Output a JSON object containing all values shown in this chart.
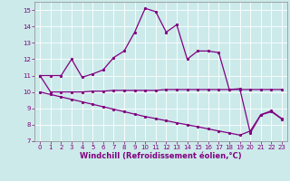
{
  "xlabel": "Windchill (Refroidissement éolien,°C)",
  "ylabel": "",
  "background_color": "#cceaea",
  "line_color": "#800080",
  "grid_color": "#b8d8d8",
  "xlim": [
    -0.5,
    23.5
  ],
  "ylim": [
    7,
    15.5
  ],
  "xticks": [
    0,
    1,
    2,
    3,
    4,
    5,
    6,
    7,
    8,
    9,
    10,
    11,
    12,
    13,
    14,
    15,
    16,
    17,
    18,
    19,
    20,
    21,
    22,
    23
  ],
  "yticks": [
    7,
    8,
    9,
    10,
    11,
    12,
    13,
    14,
    15
  ],
  "line1_x": [
    0,
    1,
    2,
    3,
    4,
    5,
    6,
    7,
    8,
    9,
    10,
    11,
    12,
    13,
    14,
    15,
    16,
    17,
    18,
    19,
    20,
    21,
    22,
    23
  ],
  "line1_y": [
    11.0,
    11.0,
    11.0,
    12.0,
    10.9,
    11.1,
    11.35,
    12.1,
    12.5,
    13.65,
    15.1,
    14.9,
    13.65,
    14.1,
    12.0,
    12.5,
    12.5,
    12.4,
    10.15,
    10.2,
    7.5,
    8.6,
    8.8,
    8.35
  ],
  "line2_x": [
    0,
    1,
    2,
    3,
    4,
    5,
    6,
    7,
    8,
    9,
    10,
    11,
    12,
    13,
    14,
    15,
    16,
    17,
    18,
    19,
    20,
    21,
    22,
    23
  ],
  "line2_y": [
    11.0,
    10.0,
    10.0,
    10.0,
    10.0,
    10.05,
    10.05,
    10.1,
    10.1,
    10.1,
    10.1,
    10.1,
    10.15,
    10.15,
    10.15,
    10.15,
    10.15,
    10.15,
    10.15,
    10.15,
    10.15,
    10.15,
    10.15,
    10.15
  ],
  "line3_x": [
    0,
    1,
    2,
    3,
    4,
    5,
    6,
    7,
    8,
    9,
    10,
    11,
    12,
    13,
    14,
    15,
    16,
    17,
    18,
    19,
    20,
    21,
    22,
    23
  ],
  "line3_y": [
    10.0,
    9.85,
    9.7,
    9.55,
    9.4,
    9.25,
    9.1,
    8.95,
    8.8,
    8.65,
    8.5,
    8.38,
    8.25,
    8.12,
    8.0,
    7.88,
    7.75,
    7.62,
    7.5,
    7.37,
    7.62,
    8.62,
    8.85,
    8.37
  ],
  "marker": ".",
  "markersize": 3,
  "linewidth": 0.9,
  "tick_fontsize": 5,
  "label_fontsize": 6,
  "spine_color": "#888888"
}
